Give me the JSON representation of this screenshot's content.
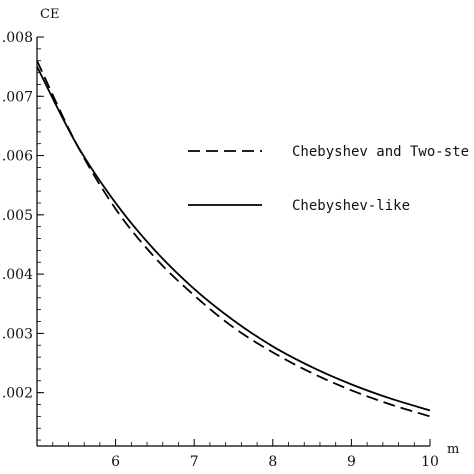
{
  "chart_data": {
    "type": "line",
    "xlabel": "m",
    "ylabel": "CE",
    "xlim": [
      5,
      10
    ],
    "ylim": [
      0.0011,
      0.008
    ],
    "x_ticks": [
      6,
      7,
      8,
      9,
      10
    ],
    "x_tick_labels": [
      "6",
      "7",
      "8",
      "9",
      "10"
    ],
    "y_ticks": [
      0.002,
      0.003,
      0.004,
      0.005,
      0.006,
      0.007,
      0.008
    ],
    "y_tick_labels": [
      ".002",
      ".003",
      ".004",
      ".005",
      ".006",
      ".007",
      ".008"
    ],
    "grid": false,
    "legend_position": "center-right",
    "series": [
      {
        "name": "Chebyshev and Two-ste",
        "style": "dashed",
        "color": "#000000",
        "x": [
          5.0,
          5.5,
          6.0,
          6.5,
          7.0,
          7.5,
          8.0,
          8.5,
          9.0,
          9.5,
          10.0
        ],
        "y": [
          0.0076,
          0.0062,
          0.0051,
          0.00428,
          0.00364,
          0.0031,
          0.00268,
          0.00233,
          0.00204,
          0.0018,
          0.0016
        ]
      },
      {
        "name": "Chebyshev-like",
        "style": "solid",
        "color": "#000000",
        "x": [
          5.0,
          5.5,
          6.0,
          6.5,
          7.0,
          7.5,
          8.0,
          8.5,
          9.0,
          9.5,
          10.0
        ],
        "y": [
          0.0075,
          0.0062,
          0.0052,
          0.0044,
          0.00375,
          0.00322,
          0.00278,
          0.00243,
          0.00214,
          0.0019,
          0.0017
        ]
      }
    ]
  }
}
